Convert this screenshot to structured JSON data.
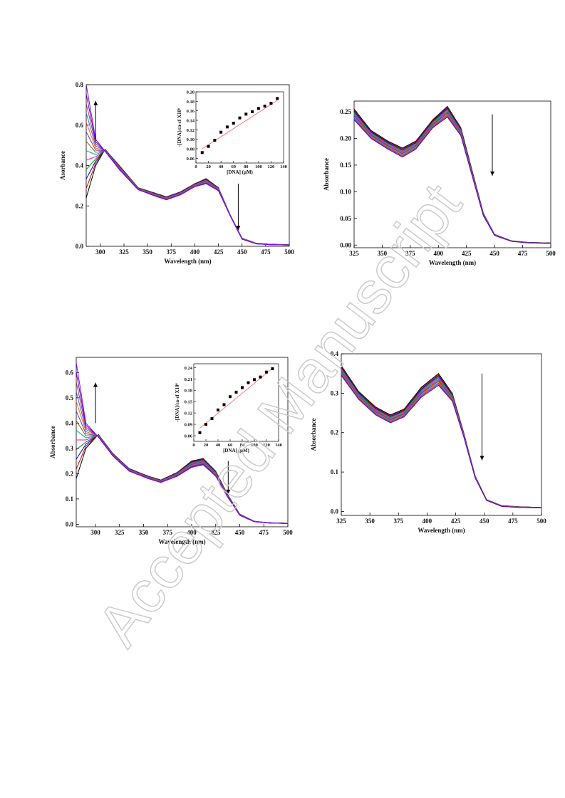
{
  "watermark": {
    "text": "Accepted Manuscript"
  },
  "colors": {
    "spectra": [
      "#000000",
      "#c00000",
      "#0000c0",
      "#008000",
      "#ff00ff",
      "#00a0a0",
      "#806000",
      "#7030a0",
      "#ff6000",
      "#3060ff",
      "#a04040",
      "#6000c0",
      "#8000ff"
    ],
    "fit_line": "#ff6060",
    "marker": "#000000"
  },
  "chart_data": [
    {
      "id": "top-left",
      "type": "line",
      "xlabel": "Wavelength (nm)",
      "ylabel": "Asorbance",
      "xlim": [
        285,
        500
      ],
      "ylim": [
        0,
        0.8
      ],
      "xticks": [
        "300",
        "325",
        "350",
        "375",
        "400",
        "425",
        "450",
        "475",
        "500"
      ],
      "yticks": [
        "0.0",
        "0.2",
        "0.4",
        "0.6",
        "0.8"
      ],
      "n_curves": 13,
      "series": [
        {
          "x": [
            285,
            295,
            305,
            320,
            340,
            360,
            370,
            385,
            400,
            412,
            425,
            437,
            450,
            465,
            480,
            500
          ],
          "y": [
            0.24,
            0.4,
            0.48,
            0.4,
            0.29,
            0.26,
            0.245,
            0.27,
            0.31,
            0.335,
            0.29,
            0.16,
            0.04,
            0.015,
            0.01,
            0.008
          ]
        },
        {
          "x": [
            285,
            295,
            305,
            320,
            340,
            360,
            370,
            385,
            400,
            412,
            425,
            437,
            450,
            465,
            480,
            500
          ],
          "y": [
            0.8,
            0.53,
            0.47,
            0.38,
            0.28,
            0.245,
            0.23,
            0.255,
            0.295,
            0.31,
            0.275,
            0.155,
            0.035,
            0.012,
            0.008,
            0.006
          ]
        }
      ],
      "arrows": [
        {
          "x": 295,
          "y_from": 0.53,
          "y_to": 0.72,
          "direction": "up"
        },
        {
          "x": 446,
          "y_from": 0.31,
          "y_to": 0.08,
          "direction": "down"
        }
      ],
      "inset": {
        "type": "scatter",
        "xlabel": "[DNA] (μM)",
        "ylabel": "-[DNA]/εa-εf X10⁶",
        "xlim": [
          0,
          140
        ],
        "ylim": [
          0.05,
          0.2
        ],
        "xticks": [
          "0",
          "20",
          "40",
          "60",
          "80",
          "100",
          "120",
          "140"
        ],
        "yticks": [
          "0.06",
          "0.08",
          "0.10",
          "0.12",
          "0.14",
          "0.16",
          "0.18",
          "0.20"
        ],
        "x": [
          10,
          20,
          30,
          40,
          50,
          60,
          70,
          80,
          90,
          100,
          110,
          120,
          130
        ],
        "y": [
          0.072,
          0.085,
          0.098,
          0.115,
          0.126,
          0.134,
          0.145,
          0.153,
          0.158,
          0.165,
          0.17,
          0.176,
          0.186
        ],
        "fit": {
          "x": [
            10,
            130
          ],
          "y": [
            0.08,
            0.182
          ]
        }
      }
    },
    {
      "id": "top-right",
      "type": "line",
      "xlabel": "Wavelength (nm)",
      "ylabel": "Absorbance",
      "xlim": [
        325,
        500
      ],
      "ylim": [
        -0.005,
        0.27
      ],
      "xticks": [
        "325",
        "350",
        "375",
        "400",
        "425",
        "450",
        "475",
        "500"
      ],
      "yticks": [
        "0.00",
        "0.05",
        "0.10",
        "0.15",
        "0.20",
        "0.25"
      ],
      "n_curves": 12,
      "series": [
        {
          "x": [
            325,
            340,
            355,
            368,
            380,
            395,
            408,
            420,
            430,
            440,
            450,
            465,
            480,
            500
          ],
          "y": [
            0.255,
            0.215,
            0.195,
            0.182,
            0.195,
            0.235,
            0.26,
            0.22,
            0.14,
            0.06,
            0.02,
            0.008,
            0.005,
            0.004
          ]
        },
        {
          "x": [
            325,
            340,
            355,
            368,
            380,
            395,
            408,
            420,
            430,
            440,
            450,
            465,
            480,
            500
          ],
          "y": [
            0.235,
            0.2,
            0.18,
            0.165,
            0.18,
            0.22,
            0.24,
            0.205,
            0.13,
            0.055,
            0.018,
            0.007,
            0.004,
            0.003
          ]
        }
      ],
      "arrows": [
        {
          "x": 448,
          "y_from": 0.245,
          "y_to": 0.13,
          "direction": "down"
        }
      ]
    },
    {
      "id": "bottom-left",
      "type": "line",
      "xlabel": "Wavelength (nm)",
      "ylabel": "Absorbance",
      "xlim": [
        280,
        500
      ],
      "ylim": [
        -0.01,
        0.66
      ],
      "xticks": [
        "300",
        "325",
        "350",
        "375",
        "400",
        "425",
        "450",
        "475",
        "500"
      ],
      "yticks": [
        "0.0",
        "0.1",
        "0.2",
        "0.3",
        "0.4",
        "0.5",
        "0.6"
      ],
      "n_curves": 13,
      "series": [
        {
          "x": [
            280,
            290,
            303,
            318,
            335,
            355,
            368,
            385,
            400,
            412,
            425,
            437,
            450,
            465,
            480,
            500
          ],
          "y": [
            0.18,
            0.3,
            0.355,
            0.28,
            0.22,
            0.19,
            0.175,
            0.205,
            0.25,
            0.26,
            0.21,
            0.12,
            0.04,
            0.012,
            0.006,
            0.004
          ]
        },
        {
          "x": [
            280,
            290,
            303,
            318,
            335,
            355,
            368,
            385,
            400,
            412,
            425,
            437,
            450,
            465,
            480,
            500
          ],
          "y": [
            0.64,
            0.4,
            0.345,
            0.27,
            0.21,
            0.18,
            0.165,
            0.19,
            0.225,
            0.235,
            0.19,
            0.11,
            0.035,
            0.01,
            0.005,
            0.003
          ]
        }
      ],
      "arrows": [
        {
          "x": 300,
          "y_from": 0.4,
          "y_to": 0.56,
          "direction": "up"
        },
        {
          "x": 438,
          "y_from": 0.25,
          "y_to": 0.12,
          "direction": "down"
        }
      ],
      "inset": {
        "type": "scatter",
        "xlabel": "[DNA] (μM)",
        "ylabel": "-[DNA]/εa-εf X10⁶",
        "xlim": [
          0,
          140
        ],
        "ylim": [
          0.045,
          0.25
        ],
        "xticks": [
          "0",
          "20",
          "40",
          "60",
          "80",
          "100",
          "120",
          "140"
        ],
        "yticks": [
          "0.06",
          "0.09",
          "0.12",
          "0.15",
          "0.18",
          "0.21",
          "0.24"
        ],
        "x": [
          10,
          20,
          30,
          40,
          50,
          60,
          70,
          80,
          90,
          100,
          110,
          120,
          130
        ],
        "y": [
          0.068,
          0.09,
          0.105,
          0.128,
          0.142,
          0.163,
          0.175,
          0.187,
          0.2,
          0.208,
          0.215,
          0.228,
          0.237
        ],
        "fit": {
          "x": [
            10,
            130
          ],
          "y": [
            0.08,
            0.238
          ]
        }
      }
    },
    {
      "id": "bottom-right",
      "type": "line",
      "xlabel": "Wavelength (nm)",
      "ylabel": "Absorbance",
      "xlim": [
        325,
        500
      ],
      "ylim": [
        -0.01,
        0.4
      ],
      "xticks": [
        "325",
        "350",
        "375",
        "400",
        "425",
        "450",
        "475",
        "500"
      ],
      "yticks": [
        "0.0",
        "0.1",
        "0.2",
        "0.3",
        "0.4"
      ],
      "n_curves": 12,
      "series": [
        {
          "x": [
            325,
            340,
            355,
            368,
            380,
            395,
            410,
            422,
            432,
            442,
            452,
            465,
            480,
            500
          ],
          "y": [
            0.37,
            0.305,
            0.265,
            0.245,
            0.26,
            0.315,
            0.35,
            0.3,
            0.2,
            0.09,
            0.03,
            0.015,
            0.012,
            0.01
          ]
        },
        {
          "x": [
            325,
            340,
            355,
            368,
            380,
            395,
            410,
            422,
            432,
            442,
            452,
            465,
            480,
            500
          ],
          "y": [
            0.345,
            0.285,
            0.245,
            0.225,
            0.24,
            0.29,
            0.32,
            0.28,
            0.19,
            0.085,
            0.028,
            0.013,
            0.01,
            0.009
          ]
        }
      ],
      "arrows": [
        {
          "x": 448,
          "y_from": 0.35,
          "y_to": 0.13,
          "direction": "down"
        }
      ]
    }
  ]
}
